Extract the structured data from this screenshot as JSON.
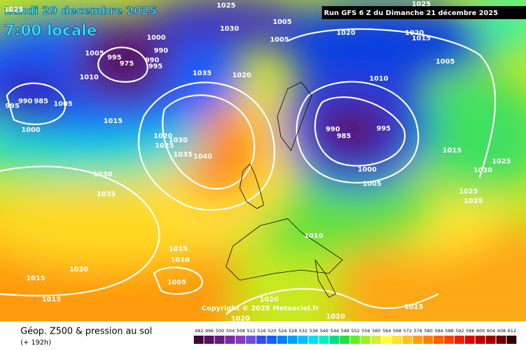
{
  "header": {
    "valid_date": "Lundi 29 decembre 2025",
    "local_time": "7:00 locale",
    "run": "Run GFS 6 Z du Dimanche 21 décembre 2025"
  },
  "map": {
    "copyright": "Copyright © 2025 Meteociel.fr",
    "isobar_labels": [
      1025,
      1025,
      1030,
      1005,
      1025,
      1020,
      1020,
      1015,
      1000,
      1005,
      990,
      995,
      995,
      975,
      990,
      1010,
      1035,
      1020,
      1010,
      1005,
      995,
      990,
      985,
      1005,
      1015,
      1000,
      990,
      985,
      995,
      1020,
      1030,
      1025,
      1035,
      1040,
      1015,
      1025,
      1020,
      1000,
      1005,
      1030,
      1025,
      1025,
      1025,
      1010,
      1015,
      1010,
      1020,
      1015,
      1005,
      1015,
      1020,
      1015,
      1020,
      1020,
      1005
    ]
  },
  "footer": {
    "title": "Géop. Z500 & pression au sol",
    "lead": "(+ 192h)"
  },
  "legend": {
    "values": [
      492,
      496,
      500,
      504,
      508,
      512,
      516,
      520,
      524,
      528,
      532,
      536,
      540,
      544,
      548,
      552,
      556,
      560,
      564,
      568,
      572,
      576,
      580,
      584,
      588,
      592,
      596,
      600,
      604,
      608,
      612
    ],
    "colors": [
      "#3a0a3a",
      "#5a1060",
      "#6a1a80",
      "#7a2aa0",
      "#8a3ac0",
      "#6a50e0",
      "#3050f0",
      "#1060ff",
      "#0080ff",
      "#00a0ff",
      "#00c0ff",
      "#00e0f0",
      "#00f0c0",
      "#00e080",
      "#20e040",
      "#60f020",
      "#a0f020",
      "#d0f030",
      "#ffff40",
      "#ffe030",
      "#ffc020",
      "#ffa010",
      "#ff8000",
      "#ff6000",
      "#ff4000",
      "#f02000",
      "#e00000",
      "#c00000",
      "#a00000",
      "#700000",
      "#300000"
    ]
  }
}
